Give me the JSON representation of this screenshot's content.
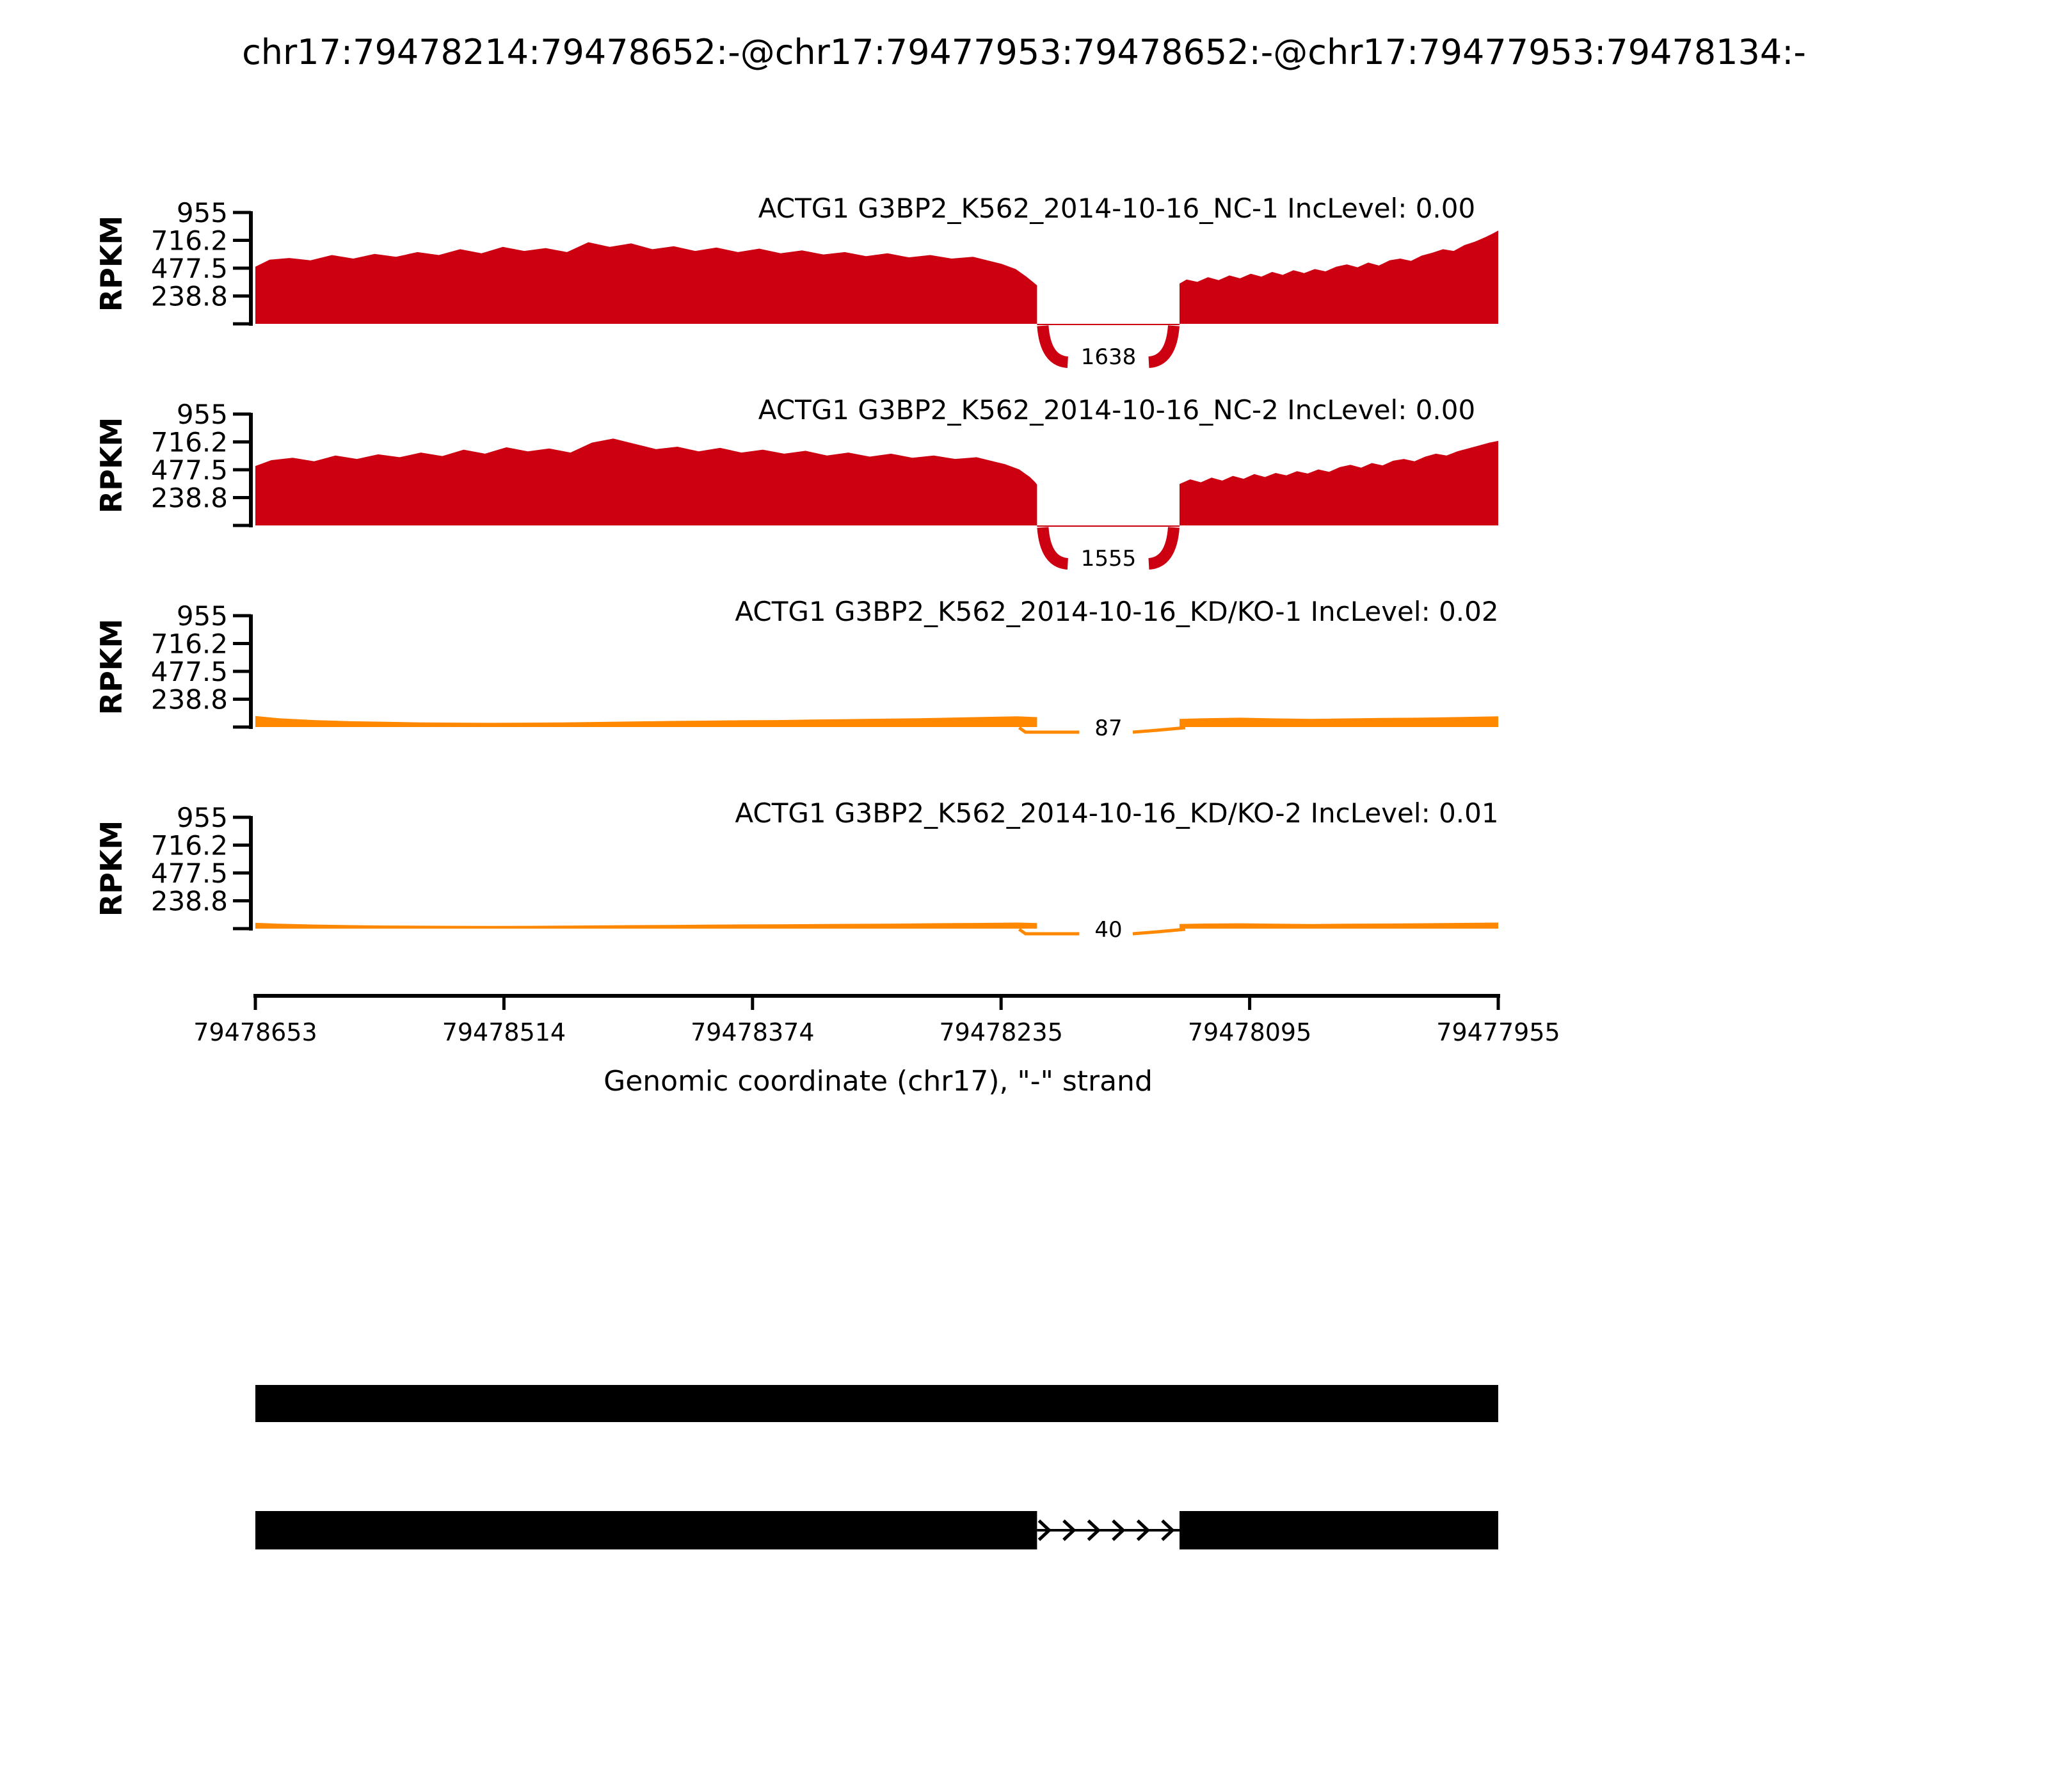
{
  "figure_title": "chr17:79478214:79478652:-@chr17:79477953:79478652:-@chr17:79477953:79478134:-",
  "colors": {
    "red": "#CC0011",
    "orange": "#FF8800",
    "black": "#000000"
  },
  "y_axis": {
    "label": "RPKM",
    "ticks": [
      "955",
      "716.2",
      "477.5",
      "238.8"
    ]
  },
  "x_axis": {
    "label": "Genomic coordinate (chr17), \"-\" strand",
    "ticks": [
      "79478653",
      "79478514",
      "79478374",
      "79478235",
      "79478095",
      "79477955"
    ]
  },
  "tracks": [
    {
      "title": "ACTG1 G3BP2_K562_2014-10-16_NC-1 IncLevel: 0.00",
      "color": "red",
      "title_color": "#CC0011",
      "junction_label": "1638"
    },
    {
      "title": "ACTG1 G3BP2_K562_2014-10-16_NC-2 IncLevel: 0.00",
      "color": "red",
      "title_color": "#CC0011",
      "junction_label": "1555"
    },
    {
      "title": "ACTG1 G3BP2_K562_2014-10-16_KD/KO-1 IncLevel: 0.02",
      "color": "orange",
      "title_color": "#FF8800",
      "junction_label": "87"
    },
    {
      "title": "ACTG1 G3BP2_K562_2014-10-16_KD/KO-2 IncLevel: 0.01",
      "color": "orange",
      "title_color": "#FF8800",
      "junction_label": "40"
    }
  ],
  "chart_data": {
    "type": "area",
    "subtype": "sashimi-coverage",
    "title": "chr17:79478214:79478652:-@chr17:79477953:79478652:-@chr17:79477953:79478134:-",
    "xlabel": "Genomic coordinate (chr17), \"-\" strand",
    "ylabel": "RPKM",
    "x_domain": [
      79478653,
      79477955
    ],
    "y_domain": [
      0,
      955
    ],
    "y_ticks": [
      955,
      716.2,
      477.5,
      238.8
    ],
    "x_ticks": [
      79478653,
      79478514,
      79478374,
      79478235,
      79478095,
      79477955
    ],
    "grid": false,
    "tracks": [
      {
        "name": "G3BP2_K562_2014-10-16_NC-1",
        "gene": "ACTG1",
        "inc_level": 0.0,
        "junction": {
          "from": 79478214,
          "to": 79478134,
          "reads": 1638,
          "style": "arc"
        },
        "coverage_segments": [
          [
            [
              79478653,
              490
            ],
            [
              79478645,
              550
            ],
            [
              79478634,
              565
            ],
            [
              79478622,
              545
            ],
            [
              79478610,
              590
            ],
            [
              79478598,
              560
            ],
            [
              79478586,
              600
            ],
            [
              79478574,
              575
            ],
            [
              79478562,
              615
            ],
            [
              79478550,
              590
            ],
            [
              79478538,
              640
            ],
            [
              79478526,
              605
            ],
            [
              79478514,
              660
            ],
            [
              79478502,
              625
            ],
            [
              79478490,
              650
            ],
            [
              79478478,
              615
            ],
            [
              79478466,
              700
            ],
            [
              79478454,
              660
            ],
            [
              79478442,
              690
            ],
            [
              79478430,
              640
            ],
            [
              79478418,
              665
            ],
            [
              79478406,
              625
            ],
            [
              79478394,
              655
            ],
            [
              79478382,
              615
            ],
            [
              79478370,
              645
            ],
            [
              79478358,
              605
            ],
            [
              79478346,
              630
            ],
            [
              79478334,
              595
            ],
            [
              79478322,
              615
            ],
            [
              79478310,
              580
            ],
            [
              79478298,
              605
            ],
            [
              79478286,
              570
            ],
            [
              79478274,
              590
            ],
            [
              79478262,
              560
            ],
            [
              79478250,
              575
            ],
            [
              79478242,
              545
            ],
            [
              79478234,
              515
            ],
            [
              79478226,
              470
            ],
            [
              79478220,
              405
            ],
            [
              79478216,
              355
            ],
            [
              79478214,
              330
            ]
          ],
          [
            [
              79478134,
              345
            ],
            [
              79478130,
              380
            ],
            [
              79478124,
              360
            ],
            [
              79478118,
              400
            ],
            [
              79478112,
              375
            ],
            [
              79478106,
              415
            ],
            [
              79478100,
              390
            ],
            [
              79478094,
              430
            ],
            [
              79478088,
              405
            ],
            [
              79478082,
              445
            ],
            [
              79478076,
              420
            ],
            [
              79478070,
              460
            ],
            [
              79478064,
              435
            ],
            [
              79478058,
              470
            ],
            [
              79478052,
              450
            ],
            [
              79478046,
              490
            ],
            [
              79478040,
              510
            ],
            [
              79478034,
              485
            ],
            [
              79478028,
              525
            ],
            [
              79478022,
              500
            ],
            [
              79478016,
              545
            ],
            [
              79478010,
              560
            ],
            [
              79478004,
              540
            ],
            [
              79477998,
              585
            ],
            [
              79477992,
              610
            ],
            [
              79477986,
              640
            ],
            [
              79477980,
              625
            ],
            [
              79477974,
              675
            ],
            [
              79477968,
              705
            ],
            [
              79477962,
              745
            ],
            [
              79477958,
              775
            ],
            [
              79477955,
              800
            ]
          ]
        ]
      },
      {
        "name": "G3BP2_K562_2014-10-16_NC-2",
        "gene": "ACTG1",
        "inc_level": 0.0,
        "junction": {
          "from": 79478214,
          "to": 79478134,
          "reads": 1555,
          "style": "arc"
        },
        "coverage_segments": [
          [
            [
              79478653,
              510
            ],
            [
              79478644,
              560
            ],
            [
              79478632,
              580
            ],
            [
              79478620,
              550
            ],
            [
              79478608,
              600
            ],
            [
              79478596,
              570
            ],
            [
              79478584,
              610
            ],
            [
              79478572,
              585
            ],
            [
              79478560,
              625
            ],
            [
              79478548,
              595
            ],
            [
              79478536,
              650
            ],
            [
              79478524,
              615
            ],
            [
              79478512,
              670
            ],
            [
              79478500,
              635
            ],
            [
              79478488,
              660
            ],
            [
              79478476,
              625
            ],
            [
              79478464,
              710
            ],
            [
              79478452,
              745
            ],
            [
              79478440,
              700
            ],
            [
              79478428,
              655
            ],
            [
              79478416,
              675
            ],
            [
              79478404,
              635
            ],
            [
              79478392,
              665
            ],
            [
              79478380,
              625
            ],
            [
              79478368,
              650
            ],
            [
              79478356,
              615
            ],
            [
              79478344,
              640
            ],
            [
              79478332,
              600
            ],
            [
              79478320,
              625
            ],
            [
              79478308,
              590
            ],
            [
              79478296,
              615
            ],
            [
              79478284,
              580
            ],
            [
              79478272,
              600
            ],
            [
              79478260,
              570
            ],
            [
              79478248,
              585
            ],
            [
              79478240,
              555
            ],
            [
              79478232,
              525
            ],
            [
              79478224,
              480
            ],
            [
              79478218,
              415
            ],
            [
              79478215,
              370
            ],
            [
              79478214,
              350
            ]
          ],
          [
            [
              79478134,
              355
            ],
            [
              79478128,
              395
            ],
            [
              79478122,
              370
            ],
            [
              79478116,
              410
            ],
            [
              79478110,
              385
            ],
            [
              79478104,
              425
            ],
            [
              79478098,
              400
            ],
            [
              79478092,
              440
            ],
            [
              79478086,
              415
            ],
            [
              79478080,
              450
            ],
            [
              79478074,
              430
            ],
            [
              79478068,
              465
            ],
            [
              79478062,
              445
            ],
            [
              79478056,
              480
            ],
            [
              79478050,
              460
            ],
            [
              79478044,
              500
            ],
            [
              79478038,
              520
            ],
            [
              79478032,
              495
            ],
            [
              79478026,
              535
            ],
            [
              79478020,
              515
            ],
            [
              79478014,
              555
            ],
            [
              79478008,
              570
            ],
            [
              79478002,
              550
            ],
            [
              79477996,
              590
            ],
            [
              79477990,
              615
            ],
            [
              79477984,
              600
            ],
            [
              79477978,
              635
            ],
            [
              79477972,
              660
            ],
            [
              79477966,
              685
            ],
            [
              79477960,
              710
            ],
            [
              79477955,
              725
            ]
          ]
        ]
      },
      {
        "name": "G3BP2_K562_2014-10-16_KD/KO-1",
        "gene": "ACTG1",
        "inc_level": 0.02,
        "junction": {
          "from": 79478214,
          "to": 79478134,
          "reads": 87,
          "style": "line"
        },
        "coverage_segments": [
          [
            [
              79478653,
              95
            ],
            [
              79478640,
              75
            ],
            [
              79478620,
              60
            ],
            [
              79478600,
              50
            ],
            [
              79478580,
              45
            ],
            [
              79478560,
              40
            ],
            [
              79478540,
              38
            ],
            [
              79478520,
              36
            ],
            [
              79478500,
              38
            ],
            [
              79478480,
              40
            ],
            [
              79478460,
              44
            ],
            [
              79478440,
              48
            ],
            [
              79478420,
              52
            ],
            [
              79478400,
              55
            ],
            [
              79478380,
              58
            ],
            [
              79478360,
              60
            ],
            [
              79478340,
              64
            ],
            [
              79478320,
              68
            ],
            [
              79478300,
              72
            ],
            [
              79478280,
              76
            ],
            [
              79478260,
              82
            ],
            [
              79478240,
              88
            ],
            [
              79478225,
              92
            ],
            [
              79478214,
              85
            ]
          ],
          [
            [
              79478134,
              70
            ],
            [
              79478120,
              76
            ],
            [
              79478100,
              80
            ],
            [
              79478080,
              74
            ],
            [
              79478060,
              70
            ],
            [
              79478040,
              74
            ],
            [
              79478020,
              78
            ],
            [
              79478000,
              80
            ],
            [
              79477985,
              84
            ],
            [
              79477970,
              88
            ],
            [
              79477955,
              92
            ]
          ]
        ]
      },
      {
        "name": "G3BP2_K562_2014-10-16_KD/KO-2",
        "gene": "ACTG1",
        "inc_level": 0.01,
        "junction": {
          "from": 79478214,
          "to": 79478134,
          "reads": 40,
          "style": "line"
        },
        "coverage_segments": [
          [
            [
              79478653,
              50
            ],
            [
              79478640,
              42
            ],
            [
              79478620,
              35
            ],
            [
              79478600,
              30
            ],
            [
              79478580,
              27
            ],
            [
              79478560,
              25
            ],
            [
              79478540,
              24
            ],
            [
              79478520,
              23
            ],
            [
              79478500,
              24
            ],
            [
              79478480,
              26
            ],
            [
              79478460,
              28
            ],
            [
              79478440,
              30
            ],
            [
              79478420,
              32
            ],
            [
              79478400,
              34
            ],
            [
              79478380,
              36
            ],
            [
              79478360,
              37
            ],
            [
              79478340,
              39
            ],
            [
              79478320,
              41
            ],
            [
              79478300,
              43
            ],
            [
              79478280,
              45
            ],
            [
              79478260,
              48
            ],
            [
              79478240,
              50
            ],
            [
              79478225,
              52
            ],
            [
              79478214,
              48
            ]
          ],
          [
            [
              79478134,
              40
            ],
            [
              79478120,
              44
            ],
            [
              79478100,
              46
            ],
            [
              79478080,
              42
            ],
            [
              79478060,
              40
            ],
            [
              79478040,
              42
            ],
            [
              79478020,
              44
            ],
            [
              79478000,
              46
            ],
            [
              79477985,
              48
            ],
            [
              79477970,
              50
            ],
            [
              79477955,
              52
            ]
          ]
        ]
      }
    ],
    "transcripts": [
      {
        "exons": [
          [
            79478653,
            79477955
          ]
        ],
        "strand_arrows": false
      },
      {
        "exons": [
          [
            79478653,
            79478214
          ],
          [
            79478134,
            79477955
          ]
        ],
        "strand_arrows": true
      }
    ]
  }
}
